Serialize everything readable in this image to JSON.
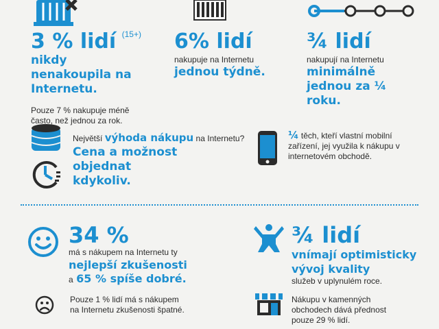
{
  "stat1": {
    "value": "3 % lidí",
    "superscript": "(15+)",
    "highlight": "nikdy nenakoupila na Internetu.",
    "note": "Pouze 7 % nakupuje méně často, než jednou za rok."
  },
  "stat2": {
    "value": "6% lidí",
    "text": "nakupuje na Internetu",
    "highlight": "jednou týdně."
  },
  "stat3": {
    "value": "¾ lidí",
    "text": "nakupují na Internetu",
    "highlight": "minimálně jednou za ¼ roku."
  },
  "advantage": {
    "text_before": "Největší",
    "text_highlight": "výhoda nákupu",
    "text_after": "na Internetu?",
    "answer": "Cena a možnost objednat kdykoliv."
  },
  "mobile": {
    "fraction": "¼",
    "text": "těch, kteří vlastní mobilní zařízení, jej využila k nákupu v internetovém obchodě."
  },
  "experience": {
    "value": "34 %",
    "text": "má s nákupem na Internetu ty",
    "highlight": "nejlepší zkušenosti",
    "text2": "a",
    "highlight2": "65 % spíše dobré."
  },
  "bad": {
    "text": "Pouze 1 % lidí má s nákupem na Internetu zkušenosti špatné."
  },
  "quality": {
    "value": "¾ lidí",
    "highlight": "vnímají optimisticky vývoj kvality",
    "text": "služeb v uplynulém roce."
  },
  "stores": {
    "text": "Nákupu v kamenných obchodech dává přednost pouze 29 % lidí."
  },
  "icons": {
    "basket": "basket-icon",
    "calendar": "calendar-icon",
    "timeline": "timeline-icon",
    "coins": "coins-icon",
    "clock": "clock-icon",
    "phone": "phone-icon",
    "happy": "happy-face-icon",
    "sad": "sad-face-icon",
    "person": "person-cheering-icon",
    "store": "store-icon"
  },
  "colors": {
    "accent": "#1c8fd0",
    "text": "#2b2b2b",
    "background": "#f3f3f1"
  }
}
